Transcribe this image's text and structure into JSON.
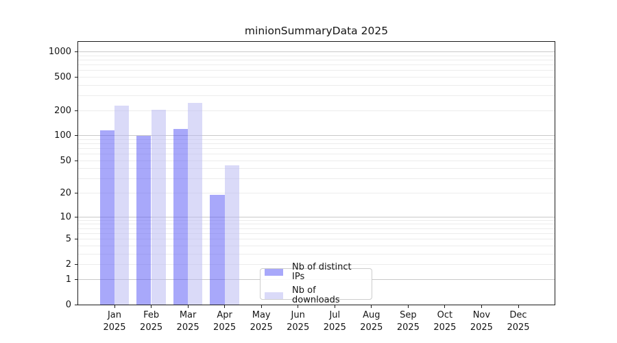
{
  "chart_data": {
    "type": "bar",
    "title": "minionSummaryData 2025",
    "x_categories": [
      {
        "line1": "Jan",
        "line2": "2025"
      },
      {
        "line1": "Feb",
        "line2": "2025"
      },
      {
        "line1": "Mar",
        "line2": "2025"
      },
      {
        "line1": "Apr",
        "line2": "2025"
      },
      {
        "line1": "May",
        "line2": "2025"
      },
      {
        "line1": "Jun",
        "line2": "2025"
      },
      {
        "line1": "Jul",
        "line2": "2025"
      },
      {
        "line1": "Aug",
        "line2": "2025"
      },
      {
        "line1": "Sep",
        "line2": "2025"
      },
      {
        "line1": "Oct",
        "line2": "2025"
      },
      {
        "line1": "Nov",
        "line2": "2025"
      },
      {
        "line1": "Dec",
        "line2": "2025"
      }
    ],
    "series": [
      {
        "name": "Nb of distinct IPs",
        "color": "rgba(81,81,245,0.5)",
        "solid_color": "#a8a8fa",
        "values": [
          115,
          100,
          120,
          19,
          null,
          null,
          null,
          null,
          null,
          null,
          null,
          null
        ]
      },
      {
        "name": "Nb of downloads",
        "color": "rgba(181,181,241,0.5)",
        "solid_color": "#dadaf8",
        "values": [
          230,
          205,
          245,
          44,
          null,
          null,
          null,
          null,
          null,
          null,
          null,
          null
        ]
      }
    ],
    "yscale": "log1p",
    "ylim": [
      0,
      1310
    ],
    "yticks": [
      {
        "value": 0,
        "label": "0"
      },
      {
        "value": 1,
        "label": "1"
      },
      {
        "value": 2,
        "label": "2"
      },
      {
        "value": 5,
        "label": "5"
      },
      {
        "value": 10,
        "label": "10"
      },
      {
        "value": 20,
        "label": "20"
      },
      {
        "value": 50,
        "label": "50"
      },
      {
        "value": 100,
        "label": "100"
      },
      {
        "value": 200,
        "label": "200"
      },
      {
        "value": 500,
        "label": "500"
      },
      {
        "value": 1000,
        "label": "1000"
      }
    ],
    "grid": true,
    "grid_major_color": "#c9c9c9",
    "grid_minor_color": "#ececec",
    "legend_position": "lower center"
  }
}
